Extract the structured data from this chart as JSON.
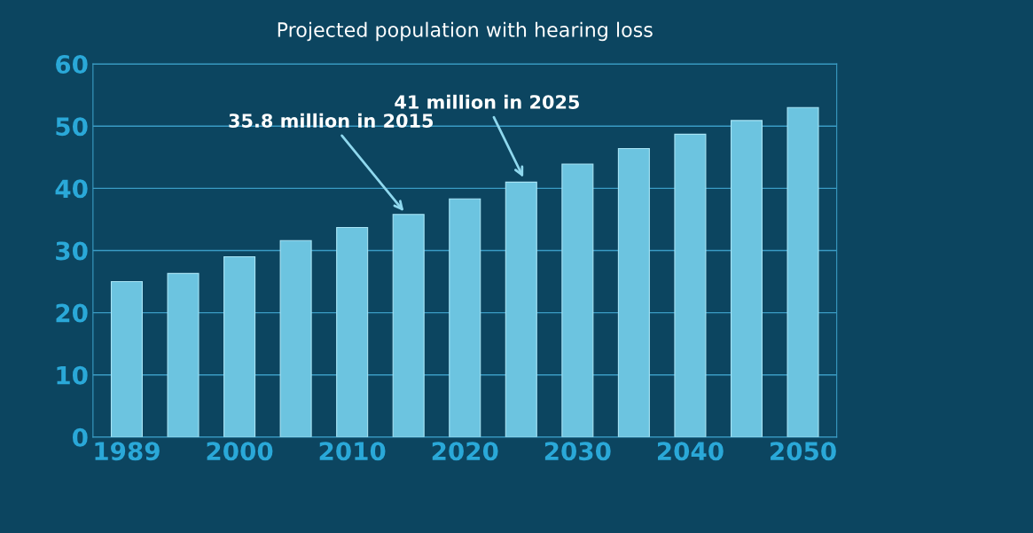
{
  "chart_data": {
    "type": "bar",
    "title": "Projected population with hearing loss",
    "categories": [
      "1989",
      null,
      "2000",
      null,
      "2010",
      null,
      "2020",
      null,
      "2030",
      null,
      "2040",
      null,
      "2050"
    ],
    "values": [
      25,
      26.3,
      29,
      31.6,
      33.7,
      35.8,
      38.3,
      41,
      43.9,
      46.4,
      48.7,
      50.9,
      53
    ],
    "color": "#6cc4e0",
    "ylim": [
      0,
      60
    ],
    "yticks": [
      0,
      10,
      20,
      30,
      40,
      50,
      60
    ],
    "grid": "y",
    "annotations": [
      "35.8 million in 2015",
      "41 million in 2025"
    ]
  }
}
